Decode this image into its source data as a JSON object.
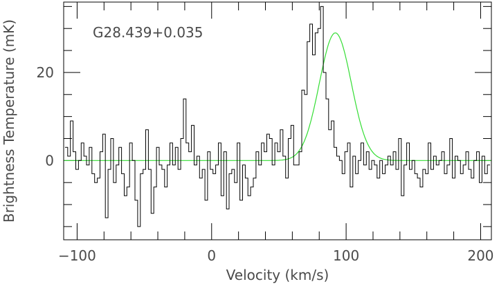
{
  "chart_data": {
    "type": "line",
    "title": "",
    "annotation": "G28.439+0.035",
    "xlabel": "Velocity (km/s)",
    "ylabel": "Brightness Temperature (mK)",
    "xlim": [
      -110,
      208
    ],
    "ylim": [
      -18,
      36
    ],
    "x_ticks": [
      -100,
      0,
      100,
      200
    ],
    "x_tick_labels": [
      "−100",
      "0",
      "100",
      "200"
    ],
    "x_minor_step": 20,
    "y_ticks": [
      0,
      20
    ],
    "y_tick_labels": [
      "0",
      "20"
    ],
    "y_minor_step": 5,
    "grid": false,
    "legend": "none",
    "colors": {
      "spectrum": "#000000",
      "fit": "#33dd33",
      "text": "#4a4a4a"
    },
    "series": [
      {
        "style": "step",
        "x": [
          -108,
          -106,
          -104,
          -102,
          -100,
          -98,
          -96,
          -94,
          -92,
          -90,
          -88,
          -86,
          -84,
          -82,
          -80,
          -78,
          -76,
          -74,
          -72,
          -70,
          -68,
          -66,
          -64,
          -62,
          -60,
          -58,
          -56,
          -54,
          -52,
          -50,
          -48,
          -46,
          -44,
          -42,
          -40,
          -38,
          -36,
          -34,
          -32,
          -30,
          -28,
          -26,
          -24,
          -22,
          -20,
          -18,
          -16,
          -14,
          -12,
          -10,
          -8,
          -6,
          -4,
          -2,
          0,
          2,
          4,
          6,
          8,
          10,
          12,
          14,
          16,
          18,
          20,
          22,
          24,
          26,
          28,
          30,
          32,
          34,
          36,
          38,
          40,
          42,
          44,
          46,
          48,
          50,
          52,
          54,
          56,
          58,
          60,
          62,
          64,
          66,
          68,
          70,
          72,
          74,
          76,
          78,
          80,
          82,
          84,
          86,
          88,
          90,
          92,
          94,
          96,
          98,
          100,
          102,
          104,
          106,
          108,
          110,
          112,
          114,
          116,
          118,
          120,
          122,
          124,
          126,
          128,
          130,
          132,
          134,
          136,
          138,
          140,
          142,
          144,
          146,
          148,
          150,
          152,
          154,
          156,
          158,
          160,
          162,
          164,
          166,
          168,
          170,
          172,
          174,
          176,
          178,
          180,
          182,
          184,
          186,
          188,
          190,
          192,
          194,
          196,
          198,
          200,
          202,
          204,
          206
        ],
        "values": [
          3,
          1,
          9,
          2,
          -2,
          0,
          4,
          1,
          -1,
          3,
          -3,
          -5,
          -4,
          2,
          6,
          -13,
          -2,
          5,
          -5,
          -1,
          3,
          -3,
          -8,
          -6,
          4,
          0,
          -9,
          -15,
          -3,
          -2,
          7,
          -2,
          -12,
          -6,
          3,
          -1,
          -2,
          -6,
          -1,
          4,
          -1,
          3,
          -2,
          5,
          14,
          4,
          2,
          8,
          -1,
          1,
          -4,
          -2,
          -9,
          2,
          -2,
          -3,
          -1,
          4,
          -8,
          2,
          -11,
          -3,
          -2,
          -5,
          4,
          -9,
          -1,
          -4,
          -8,
          -6,
          -4,
          2,
          -1,
          4,
          2,
          6,
          5,
          -1,
          4,
          2,
          7,
          1,
          -4,
          5,
          8,
          -1,
          -1,
          2,
          16,
          15,
          27,
          31,
          24,
          29,
          30,
          35,
          20,
          14,
          7,
          9,
          3,
          1,
          0,
          -3,
          2,
          4,
          -6,
          1,
          -3,
          0,
          4,
          -1,
          2,
          -2,
          0,
          -1,
          -4,
          0,
          -3,
          -1,
          1,
          -1,
          2,
          -2,
          5,
          -8,
          -1,
          4,
          -2,
          0,
          -3,
          -4,
          -6,
          -2,
          -3,
          4,
          -2,
          1,
          -1,
          0,
          2,
          -3,
          -1,
          5,
          -4,
          1,
          0,
          -3,
          -1,
          2,
          -2,
          -4,
          0,
          2,
          -5,
          1,
          -3,
          -1
        ],
        "line_segments_note": ""
      },
      {
        "style": "smooth",
        "fit": "gaussian",
        "amplitude": 29,
        "center": 92,
        "fwhm": 28,
        "baseline": 0
      }
    ]
  }
}
